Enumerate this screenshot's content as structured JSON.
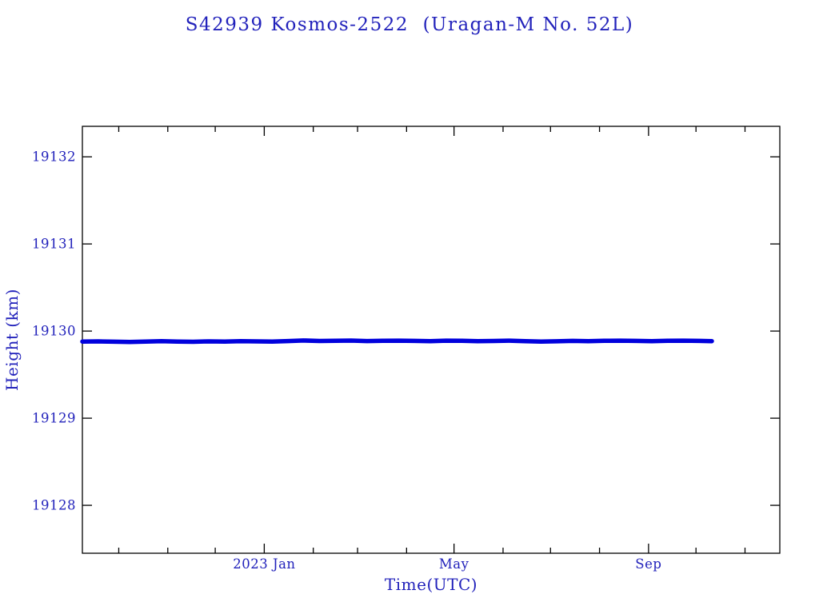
{
  "chart_data": {
    "type": "line",
    "title": "S42939 Kosmos-2522  (Uragan-M No. 52L)",
    "xlabel": "Time(UTC)",
    "ylabel": "Height (km)",
    "x_unit": "days from left edge of plot (monthly ticks)",
    "xlim": [
      0,
      441
    ],
    "ylim": [
      19127.45,
      19132.35
    ],
    "grid": false,
    "legend": "none",
    "colors": {
      "text": "#2222bb",
      "line": "#0000dd",
      "axis": "#000000"
    },
    "y_ticks": [
      {
        "value": 19128,
        "label": "19128"
      },
      {
        "value": 19129,
        "label": "19129"
      },
      {
        "value": 19130,
        "label": "19130"
      },
      {
        "value": 19131,
        "label": "19131"
      },
      {
        "value": 19132,
        "label": "19132"
      }
    ],
    "x_ticks": [
      {
        "day": 23,
        "label": ""
      },
      {
        "day": 54,
        "label": ""
      },
      {
        "day": 84,
        "label": ""
      },
      {
        "day": 115,
        "label": "2023 Jan"
      },
      {
        "day": 146,
        "label": ""
      },
      {
        "day": 174,
        "label": ""
      },
      {
        "day": 205,
        "label": ""
      },
      {
        "day": 235,
        "label": "May"
      },
      {
        "day": 266,
        "label": ""
      },
      {
        "day": 296,
        "label": ""
      },
      {
        "day": 327,
        "label": ""
      },
      {
        "day": 358,
        "label": "Sep"
      },
      {
        "day": 388,
        "label": ""
      },
      {
        "day": 419,
        "label": ""
      }
    ],
    "series": [
      {
        "name": "height-km",
        "color": "#0000dd",
        "x": [
          0,
          10,
          20,
          30,
          40,
          50,
          60,
          70,
          80,
          90,
          100,
          110,
          120,
          130,
          140,
          150,
          160,
          170,
          180,
          190,
          200,
          210,
          220,
          230,
          240,
          250,
          260,
          270,
          280,
          290,
          300,
          310,
          320,
          330,
          340,
          350,
          360,
          370,
          380,
          390,
          398
        ],
        "y": [
          19129.88,
          19129.882,
          19129.878,
          19129.875,
          19129.88,
          19129.884,
          19129.879,
          19129.877,
          19129.882,
          19129.88,
          19129.884,
          19129.882,
          19129.879,
          19129.885,
          19129.892,
          19129.886,
          19129.888,
          19129.891,
          19129.885,
          19129.888,
          19129.89,
          19129.887,
          19129.884,
          19129.89,
          19129.888,
          19129.884,
          19129.886,
          19129.89,
          19129.884,
          19129.879,
          19129.883,
          19129.887,
          19129.884,
          19129.888,
          19129.89,
          19129.887,
          19129.884,
          19129.888,
          19129.89,
          19129.887,
          19129.884
        ]
      }
    ]
  }
}
